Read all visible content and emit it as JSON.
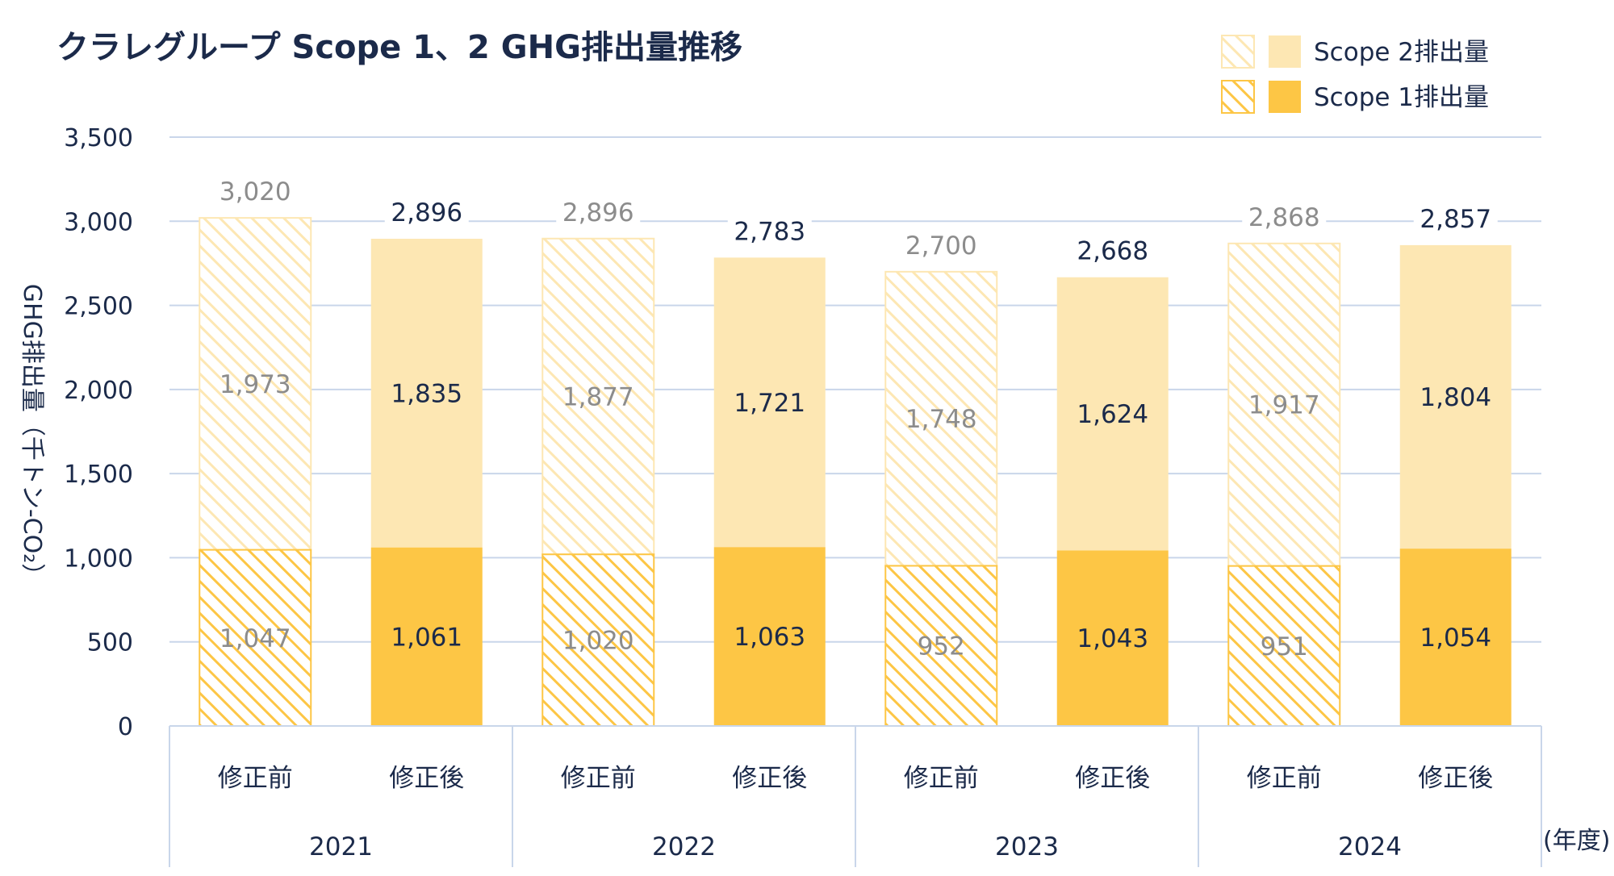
{
  "chart_data": {
    "type": "bar",
    "stacked": true,
    "title": "クラレグループ Scope 1、2 GHG排出量推移",
    "ylabel": "GHG排出量（千トン-CO₂）",
    "unit_label": "(年度)",
    "ylim": [
      0,
      3500
    ],
    "yticks": [
      "0",
      "500",
      "1,000",
      "1,500",
      "2,000",
      "2,500",
      "3,000",
      "3,500"
    ],
    "grid": true,
    "legend_position": "top-right",
    "legend": [
      "Scope 2排出量",
      "Scope 1排出量"
    ],
    "years": [
      "2021",
      "2022",
      "2023",
      "2024"
    ],
    "categories": [
      "修正前",
      "修正後",
      "修正前",
      "修正後",
      "修正前",
      "修正後",
      "修正前",
      "修正後"
    ],
    "series": [
      {
        "name": "Scope 1排出量",
        "values": [
          1047,
          1061,
          1020,
          1063,
          952,
          1043,
          951,
          1054
        ]
      },
      {
        "name": "Scope 2排出量",
        "values": [
          1973,
          1835,
          1877,
          1721,
          1748,
          1624,
          1917,
          1804
        ]
      }
    ],
    "totals": [
      3020,
      2896,
      2896,
      2783,
      2700,
      2668,
      2868,
      2857
    ],
    "labels": {
      "scope1": [
        "1,047",
        "1,061",
        "1,020",
        "1,063",
        "952",
        "1,043",
        "951",
        "1,054"
      ],
      "scope2": [
        "1,973",
        "1,835",
        "1,877",
        "1,721",
        "1,748",
        "1,624",
        "1,917",
        "1,804"
      ],
      "totals": [
        "3,020",
        "2,896",
        "2,896",
        "2,783",
        "2,700",
        "2,668",
        "2,868",
        "2,857"
      ]
    },
    "colors": {
      "scope1": "#fdc645",
      "scope2": "#fde7b3",
      "hatch_line": "#fdc645",
      "grid": "#c9d6ea",
      "text": "#1b2a4a",
      "label_before": "#8c8c8c"
    }
  }
}
